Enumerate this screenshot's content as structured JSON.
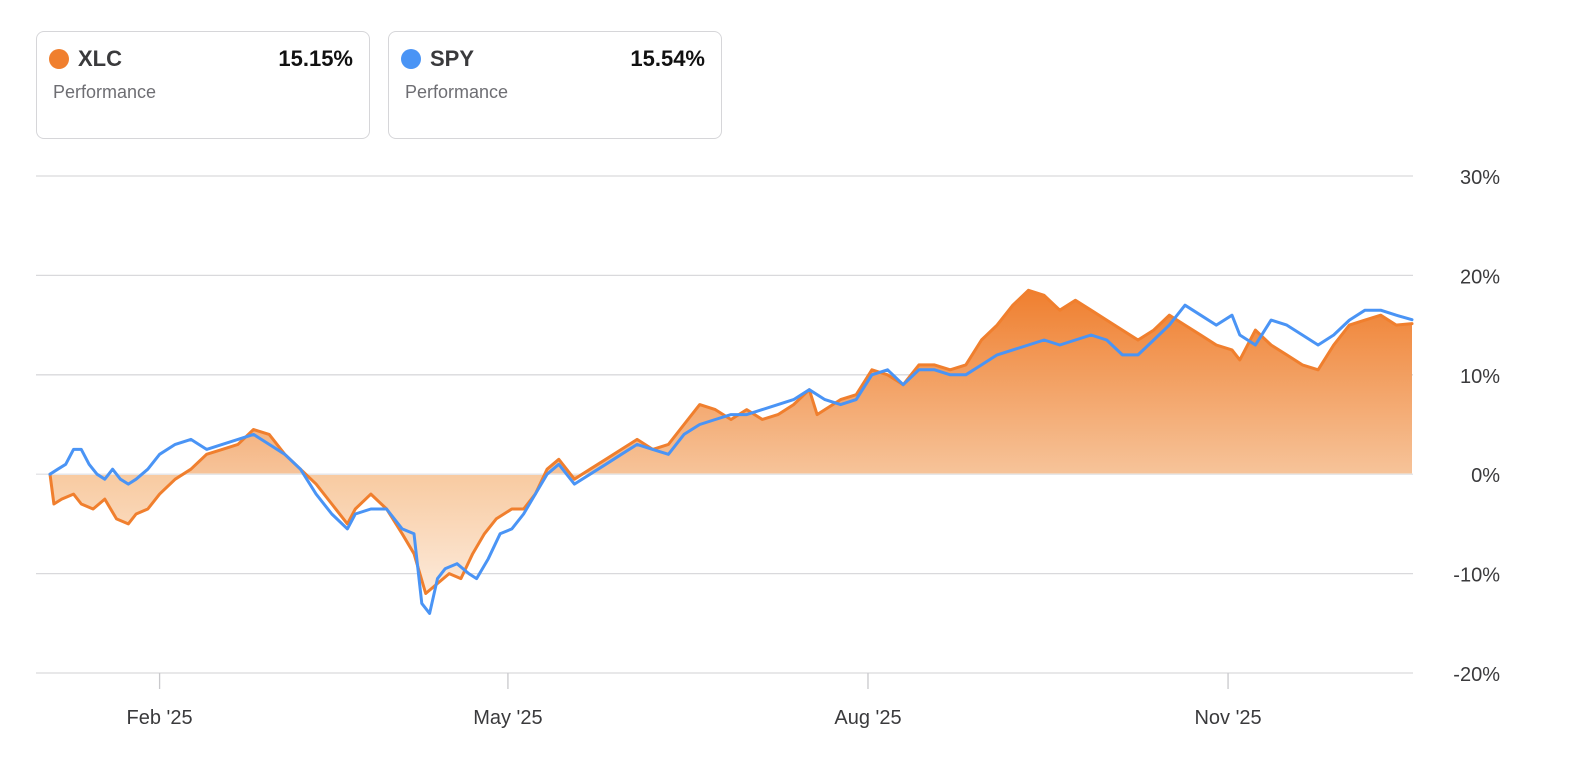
{
  "legend": [
    {
      "ticker": "XLC",
      "value": "15.15%",
      "label": "Performance",
      "color": "#f07f2e"
    },
    {
      "ticker": "SPY",
      "value": "15.54%",
      "label": "Performance",
      "color": "#4a94f5"
    }
  ],
  "chart_data": {
    "type": "line",
    "title": "",
    "xlabel": "",
    "ylabel": "",
    "ylim": [
      -20,
      30
    ],
    "yticks": [
      30,
      20,
      10,
      0,
      -10,
      -20
    ],
    "ytick_labels": [
      "30%",
      "20%",
      "10%",
      "0%",
      "-10%",
      "-20%"
    ],
    "xticks": [
      {
        "day": 30,
        "label": "Feb '25"
      },
      {
        "day": 119,
        "label": "May '25"
      },
      {
        "day": 211,
        "label": "Aug '25"
      },
      {
        "day": 303,
        "label": "Nov '25"
      }
    ],
    "x_unit": "days since Jan 1 2025",
    "xlim": [
      -2,
      350
    ],
    "series": [
      {
        "name": "XLC",
        "color": "#f07f2e",
        "fill": true,
        "points": [
          [
            2,
            0
          ],
          [
            3,
            -3
          ],
          [
            5,
            -2.5
          ],
          [
            8,
            -2
          ],
          [
            10,
            -3
          ],
          [
            13,
            -3.5
          ],
          [
            16,
            -2.5
          ],
          [
            19,
            -4.5
          ],
          [
            22,
            -5
          ],
          [
            24,
            -4
          ],
          [
            27,
            -3.5
          ],
          [
            30,
            -2
          ],
          [
            34,
            -0.5
          ],
          [
            38,
            0.5
          ],
          [
            42,
            2
          ],
          [
            46,
            2.5
          ],
          [
            50,
            3
          ],
          [
            54,
            4.5
          ],
          [
            58,
            4
          ],
          [
            62,
            2
          ],
          [
            66,
            0.5
          ],
          [
            70,
            -1
          ],
          [
            74,
            -3
          ],
          [
            78,
            -5
          ],
          [
            80,
            -3.5
          ],
          [
            84,
            -2
          ],
          [
            88,
            -3.5
          ],
          [
            92,
            -6
          ],
          [
            95,
            -8
          ],
          [
            98,
            -12
          ],
          [
            101,
            -11
          ],
          [
            104,
            -10
          ],
          [
            107,
            -10.5
          ],
          [
            110,
            -8
          ],
          [
            113,
            -6
          ],
          [
            116,
            -4.5
          ],
          [
            120,
            -3.5
          ],
          [
            123,
            -3.5
          ],
          [
            126,
            -2
          ],
          [
            129,
            0.5
          ],
          [
            132,
            1.5
          ],
          [
            136,
            -0.5
          ],
          [
            140,
            0.5
          ],
          [
            144,
            1.5
          ],
          [
            148,
            2.5
          ],
          [
            152,
            3.5
          ],
          [
            156,
            2.5
          ],
          [
            160,
            3
          ],
          [
            164,
            5
          ],
          [
            168,
            7
          ],
          [
            172,
            6.5
          ],
          [
            176,
            5.5
          ],
          [
            180,
            6.5
          ],
          [
            184,
            5.5
          ],
          [
            188,
            6
          ],
          [
            192,
            7
          ],
          [
            196,
            8.5
          ],
          [
            198,
            6
          ],
          [
            200,
            6.5
          ],
          [
            204,
            7.5
          ],
          [
            208,
            8
          ],
          [
            212,
            10.5
          ],
          [
            216,
            10
          ],
          [
            220,
            9
          ],
          [
            224,
            11
          ],
          [
            228,
            11
          ],
          [
            232,
            10.5
          ],
          [
            236,
            11
          ],
          [
            240,
            13.5
          ],
          [
            244,
            15
          ],
          [
            248,
            17
          ],
          [
            252,
            18.5
          ],
          [
            256,
            18
          ],
          [
            260,
            16.5
          ],
          [
            264,
            17.5
          ],
          [
            268,
            16.5
          ],
          [
            272,
            15.5
          ],
          [
            276,
            14.5
          ],
          [
            280,
            13.5
          ],
          [
            284,
            14.5
          ],
          [
            288,
            16
          ],
          [
            292,
            15
          ],
          [
            296,
            14
          ],
          [
            300,
            13
          ],
          [
            304,
            12.5
          ],
          [
            306,
            11.5
          ],
          [
            310,
            14.5
          ],
          [
            314,
            13
          ],
          [
            318,
            12
          ],
          [
            322,
            11
          ],
          [
            326,
            10.5
          ],
          [
            330,
            13
          ],
          [
            334,
            15
          ],
          [
            338,
            15.5
          ],
          [
            342,
            16
          ],
          [
            346,
            15
          ],
          [
            350,
            15.15
          ]
        ]
      },
      {
        "name": "SPY",
        "color": "#4a94f5",
        "fill": false,
        "points": [
          [
            2,
            0
          ],
          [
            4,
            0.5
          ],
          [
            6,
            1
          ],
          [
            8,
            2.5
          ],
          [
            10,
            2.5
          ],
          [
            12,
            1
          ],
          [
            14,
            0
          ],
          [
            16,
            -0.5
          ],
          [
            18,
            0.5
          ],
          [
            20,
            -0.5
          ],
          [
            22,
            -1
          ],
          [
            24,
            -0.5
          ],
          [
            27,
            0.5
          ],
          [
            30,
            2
          ],
          [
            34,
            3
          ],
          [
            38,
            3.5
          ],
          [
            42,
            2.5
          ],
          [
            46,
            3
          ],
          [
            50,
            3.5
          ],
          [
            54,
            4
          ],
          [
            58,
            3
          ],
          [
            62,
            2
          ],
          [
            66,
            0.5
          ],
          [
            70,
            -2
          ],
          [
            74,
            -4
          ],
          [
            78,
            -5.5
          ],
          [
            80,
            -4
          ],
          [
            84,
            -3.5
          ],
          [
            88,
            -3.5
          ],
          [
            92,
            -5.5
          ],
          [
            95,
            -6
          ],
          [
            97,
            -13
          ],
          [
            99,
            -14
          ],
          [
            101,
            -10.5
          ],
          [
            103,
            -9.5
          ],
          [
            106,
            -9
          ],
          [
            109,
            -10
          ],
          [
            111,
            -10.5
          ],
          [
            114,
            -8.5
          ],
          [
            117,
            -6
          ],
          [
            120,
            -5.5
          ],
          [
            123,
            -4
          ],
          [
            126,
            -2
          ],
          [
            129,
            0
          ],
          [
            132,
            1
          ],
          [
            136,
            -1
          ],
          [
            140,
            0
          ],
          [
            144,
            1
          ],
          [
            148,
            2
          ],
          [
            152,
            3
          ],
          [
            156,
            2.5
          ],
          [
            160,
            2
          ],
          [
            164,
            4
          ],
          [
            168,
            5
          ],
          [
            172,
            5.5
          ],
          [
            176,
            6
          ],
          [
            180,
            6
          ],
          [
            184,
            6.5
          ],
          [
            188,
            7
          ],
          [
            192,
            7.5
          ],
          [
            196,
            8.5
          ],
          [
            200,
            7.5
          ],
          [
            204,
            7
          ],
          [
            208,
            7.5
          ],
          [
            212,
            10
          ],
          [
            216,
            10.5
          ],
          [
            220,
            9
          ],
          [
            224,
            10.5
          ],
          [
            228,
            10.5
          ],
          [
            232,
            10
          ],
          [
            236,
            10
          ],
          [
            240,
            11
          ],
          [
            244,
            12
          ],
          [
            248,
            12.5
          ],
          [
            252,
            13
          ],
          [
            256,
            13.5
          ],
          [
            260,
            13
          ],
          [
            264,
            13.5
          ],
          [
            268,
            14
          ],
          [
            272,
            13.5
          ],
          [
            276,
            12
          ],
          [
            280,
            12
          ],
          [
            284,
            13.5
          ],
          [
            288,
            15
          ],
          [
            292,
            17
          ],
          [
            296,
            16
          ],
          [
            300,
            15
          ],
          [
            304,
            16
          ],
          [
            306,
            14
          ],
          [
            310,
            13
          ],
          [
            314,
            15.5
          ],
          [
            318,
            15
          ],
          [
            322,
            14
          ],
          [
            326,
            13
          ],
          [
            330,
            14
          ],
          [
            334,
            15.5
          ],
          [
            338,
            16.5
          ],
          [
            342,
            16.5
          ],
          [
            346,
            16
          ],
          [
            350,
            15.54
          ]
        ]
      }
    ]
  }
}
